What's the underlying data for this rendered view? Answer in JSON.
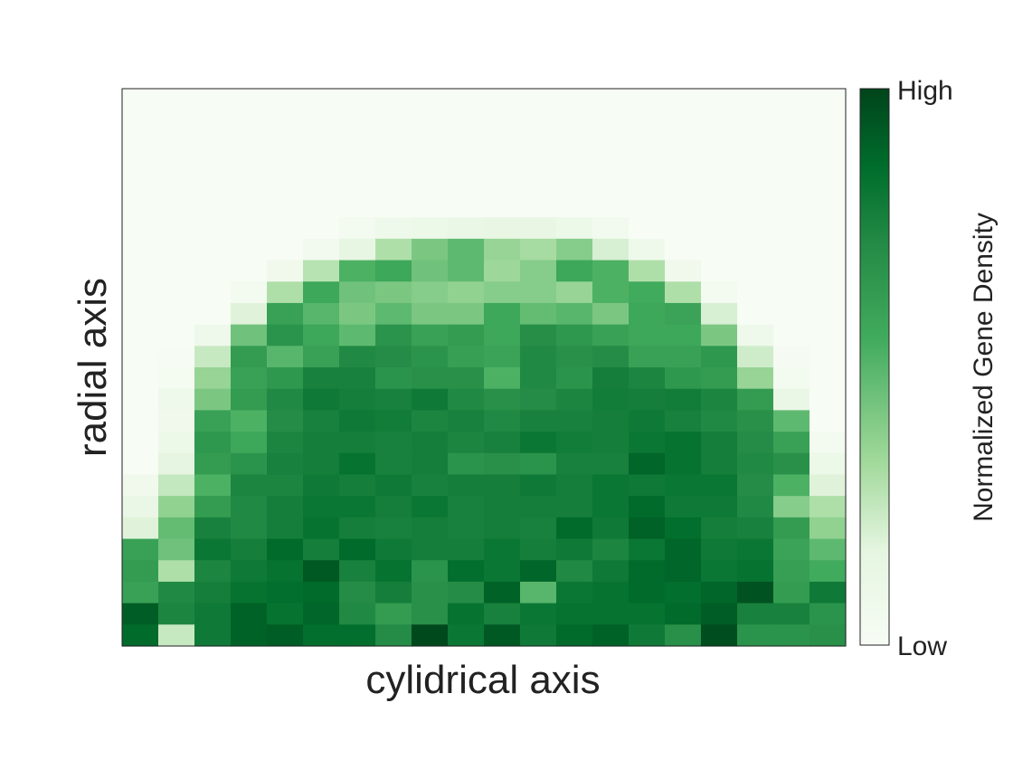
{
  "chart_data": {
    "type": "heatmap",
    "xlabel": "cylidrical axis",
    "ylabel": "radial axis",
    "colorbar": {
      "label": "Normalized Gene Density",
      "high_label": "High",
      "low_label": "Low",
      "colors": [
        "#f7fcf5",
        "#e5f5e0",
        "#a1d99b",
        "#41ab5d",
        "#238b45",
        "#006d2c",
        "#00441b"
      ]
    },
    "value_range": [
      0,
      1
    ],
    "note": "values are normalized intensities read from color; row 0 is the top of the plot",
    "grid": false,
    "matrix": [
      [
        0.0,
        0.0,
        0.0,
        0.0,
        0.0,
        0.0,
        0.0,
        0.0,
        0.0,
        0.0,
        0.0,
        0.0,
        0.0,
        0.0,
        0.0,
        0.0,
        0.0,
        0.0,
        0.0,
        0.0
      ],
      [
        0.0,
        0.0,
        0.0,
        0.0,
        0.0,
        0.0,
        0.0,
        0.0,
        0.0,
        0.0,
        0.0,
        0.0,
        0.0,
        0.0,
        0.0,
        0.0,
        0.0,
        0.0,
        0.0,
        0.0
      ],
      [
        0.0,
        0.0,
        0.0,
        0.0,
        0.0,
        0.0,
        0.0,
        0.0,
        0.0,
        0.0,
        0.0,
        0.0,
        0.0,
        0.0,
        0.0,
        0.0,
        0.0,
        0.0,
        0.0,
        0.0
      ],
      [
        0.0,
        0.0,
        0.0,
        0.0,
        0.0,
        0.0,
        0.0,
        0.0,
        0.0,
        0.0,
        0.0,
        0.0,
        0.0,
        0.0,
        0.0,
        0.0,
        0.0,
        0.0,
        0.0,
        0.0
      ],
      [
        0.0,
        0.0,
        0.0,
        0.0,
        0.0,
        0.0,
        0.0,
        0.0,
        0.0,
        0.0,
        0.0,
        0.0,
        0.0,
        0.0,
        0.0,
        0.0,
        0.0,
        0.0,
        0.0,
        0.0
      ],
      [
        0.0,
        0.0,
        0.0,
        0.0,
        0.0,
        0.0,
        0.0,
        0.0,
        0.0,
        0.0,
        0.0,
        0.0,
        0.0,
        0.0,
        0.0,
        0.0,
        0.0,
        0.0,
        0.0,
        0.0
      ],
      [
        0.0,
        0.0,
        0.0,
        0.0,
        0.0,
        0.0,
        0.04,
        0.08,
        0.1,
        0.12,
        0.14,
        0.14,
        0.1,
        0.05,
        0.0,
        0.0,
        0.0,
        0.0,
        0.0,
        0.0
      ],
      [
        0.0,
        0.0,
        0.0,
        0.0,
        0.0,
        0.05,
        0.15,
        0.3,
        0.4,
        0.45,
        0.35,
        0.32,
        0.38,
        0.2,
        0.08,
        0.0,
        0.0,
        0.0,
        0.0,
        0.0
      ],
      [
        0.0,
        0.0,
        0.0,
        0.0,
        0.06,
        0.28,
        0.48,
        0.52,
        0.42,
        0.45,
        0.34,
        0.38,
        0.52,
        0.48,
        0.3,
        0.06,
        0.0,
        0.0,
        0.0,
        0.0
      ],
      [
        0.0,
        0.0,
        0.0,
        0.04,
        0.3,
        0.52,
        0.42,
        0.4,
        0.38,
        0.36,
        0.38,
        0.38,
        0.35,
        0.48,
        0.5,
        0.3,
        0.04,
        0.0,
        0.0,
        0.0
      ],
      [
        0.0,
        0.0,
        0.0,
        0.18,
        0.55,
        0.46,
        0.4,
        0.45,
        0.4,
        0.4,
        0.52,
        0.44,
        0.46,
        0.4,
        0.52,
        0.54,
        0.2,
        0.0,
        0.0,
        0.0
      ],
      [
        0.0,
        0.0,
        0.08,
        0.42,
        0.62,
        0.52,
        0.45,
        0.62,
        0.55,
        0.58,
        0.52,
        0.65,
        0.6,
        0.55,
        0.52,
        0.52,
        0.4,
        0.08,
        0.0,
        0.0
      ],
      [
        0.0,
        0.01,
        0.24,
        0.58,
        0.46,
        0.55,
        0.68,
        0.66,
        0.62,
        0.56,
        0.54,
        0.68,
        0.64,
        0.66,
        0.55,
        0.55,
        0.6,
        0.22,
        0.02,
        0.0
      ],
      [
        0.0,
        0.03,
        0.35,
        0.55,
        0.6,
        0.72,
        0.72,
        0.62,
        0.64,
        0.64,
        0.48,
        0.68,
        0.62,
        0.74,
        0.7,
        0.6,
        0.58,
        0.35,
        0.04,
        0.0
      ],
      [
        0.0,
        0.08,
        0.4,
        0.58,
        0.68,
        0.76,
        0.74,
        0.72,
        0.76,
        0.68,
        0.64,
        0.66,
        0.7,
        0.75,
        0.74,
        0.75,
        0.7,
        0.58,
        0.12,
        0.0
      ],
      [
        0.0,
        0.06,
        0.55,
        0.48,
        0.66,
        0.72,
        0.76,
        0.75,
        0.7,
        0.72,
        0.68,
        0.72,
        0.72,
        0.74,
        0.76,
        0.72,
        0.68,
        0.64,
        0.45,
        0.0
      ],
      [
        0.0,
        0.1,
        0.6,
        0.52,
        0.7,
        0.74,
        0.74,
        0.72,
        0.74,
        0.7,
        0.72,
        0.78,
        0.75,
        0.74,
        0.78,
        0.8,
        0.74,
        0.66,
        0.55,
        0.04
      ],
      [
        0.0,
        0.16,
        0.58,
        0.62,
        0.72,
        0.74,
        0.8,
        0.72,
        0.74,
        0.62,
        0.64,
        0.62,
        0.72,
        0.72,
        0.86,
        0.8,
        0.74,
        0.68,
        0.64,
        0.1
      ],
      [
        0.06,
        0.25,
        0.48,
        0.7,
        0.7,
        0.76,
        0.74,
        0.76,
        0.72,
        0.74,
        0.74,
        0.76,
        0.74,
        0.78,
        0.76,
        0.78,
        0.78,
        0.66,
        0.48,
        0.18
      ],
      [
        0.12,
        0.36,
        0.58,
        0.68,
        0.74,
        0.78,
        0.78,
        0.74,
        0.78,
        0.72,
        0.74,
        0.74,
        0.74,
        0.78,
        0.84,
        0.76,
        0.76,
        0.68,
        0.38,
        0.3
      ],
      [
        0.18,
        0.44,
        0.72,
        0.68,
        0.74,
        0.8,
        0.74,
        0.72,
        0.74,
        0.72,
        0.74,
        0.72,
        0.84,
        0.76,
        0.88,
        0.82,
        0.74,
        0.72,
        0.58,
        0.36
      ],
      [
        0.55,
        0.42,
        0.78,
        0.74,
        0.84,
        0.74,
        0.84,
        0.76,
        0.74,
        0.74,
        0.78,
        0.74,
        0.76,
        0.7,
        0.78,
        0.86,
        0.76,
        0.78,
        0.54,
        0.45
      ],
      [
        0.58,
        0.3,
        0.7,
        0.76,
        0.8,
        0.92,
        0.72,
        0.8,
        0.62,
        0.82,
        0.78,
        0.86,
        0.68,
        0.76,
        0.84,
        0.86,
        0.78,
        0.8,
        0.56,
        0.5
      ],
      [
        0.55,
        0.68,
        0.74,
        0.8,
        0.82,
        0.84,
        0.66,
        0.74,
        0.64,
        0.66,
        0.88,
        0.46,
        0.78,
        0.8,
        0.84,
        0.82,
        0.86,
        0.94,
        0.58,
        0.76
      ],
      [
        0.9,
        0.7,
        0.76,
        0.88,
        0.8,
        0.86,
        0.68,
        0.58,
        0.64,
        0.8,
        0.72,
        0.78,
        0.8,
        0.8,
        0.8,
        0.84,
        0.9,
        0.72,
        0.72,
        0.62
      ],
      [
        0.84,
        0.24,
        0.76,
        0.88,
        0.9,
        0.82,
        0.82,
        0.66,
        0.98,
        0.78,
        0.92,
        0.76,
        0.84,
        0.88,
        0.76,
        0.64,
        0.96,
        0.62,
        0.62,
        0.64
      ]
    ]
  }
}
